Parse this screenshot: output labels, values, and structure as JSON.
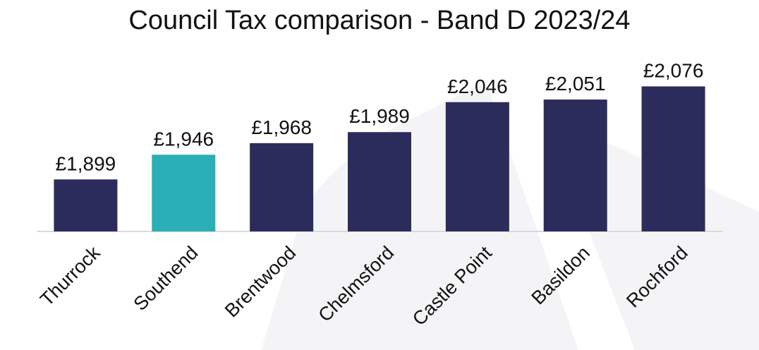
{
  "chart_data": {
    "type": "bar",
    "title": "Council Tax comparison - Band D 2023/24",
    "categories": [
      "Thurrock",
      "Southend",
      "Brentwood",
      "Chelmsford",
      "Castle Point",
      "Basildon",
      "Rochford"
    ],
    "values": [
      1899,
      1946,
      1968,
      1989,
      2046,
      2051,
      2076
    ],
    "data_labels": [
      "£1,899",
      "£1,946",
      "£1,968",
      "£1,989",
      "£2,046",
      "£2,051",
      "£2,076"
    ],
    "xlabel": "",
    "ylabel": "",
    "ylim": [
      1800,
      2090
    ],
    "grid": false,
    "legend": "none",
    "colors": {
      "default": "#2c2c5c",
      "highlight": "#2aaeb7",
      "highlight_category": "Southend",
      "axis": "#d9d9d9",
      "text": "#111111",
      "background_shape": "#f4f4f6"
    }
  }
}
